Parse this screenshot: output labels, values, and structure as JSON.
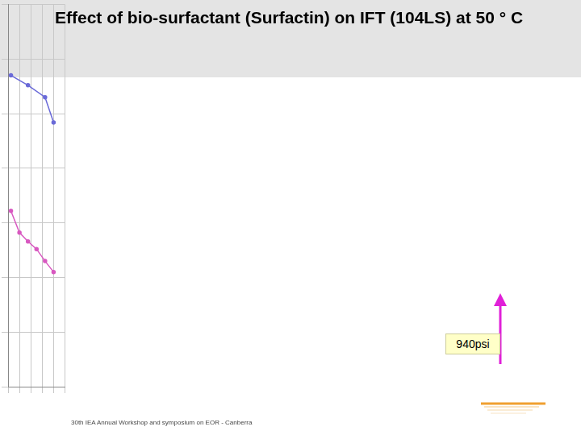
{
  "slide": {
    "title": "Effect of bio-surfactant (Surfactin) on IFT (104LS) at 50 ° C",
    "annotation": "940psi",
    "footer": "30th IEA Annual Workshop and symposium on EOR - Canberra"
  },
  "chart_data": {
    "type": "line",
    "series": [
      {
        "color": "#6a6ad8",
        "marker": "circle",
        "x": [
          5,
          35,
          65,
          80
        ],
        "values": [
          28.5,
          27.6,
          26.5,
          24.2
        ]
      },
      {
        "color": "#d858c0",
        "marker": "circle",
        "x": [
          5,
          20,
          35,
          50,
          65,
          80
        ],
        "values": [
          16.1,
          14.1,
          13.3,
          12.6,
          11.5,
          10.5
        ]
      }
    ],
    "xlim": [
      0,
      100
    ],
    "xticks": [
      0,
      20,
      40,
      60,
      80,
      100
    ],
    "ylim": [
      0,
      35
    ],
    "yticks": [
      0,
      5,
      10,
      15,
      20,
      25,
      30,
      35
    ],
    "grid": true,
    "tick_labels": false
  }
}
